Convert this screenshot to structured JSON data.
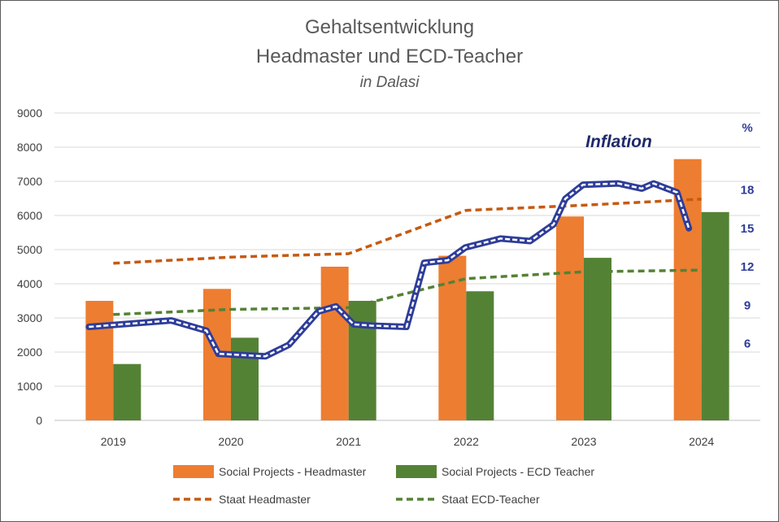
{
  "chart_data": {
    "type": "bar",
    "title": "Gehaltsentwicklung",
    "title_line2": "Headmaster und ECD-Teacher",
    "subtitle": "in Dalasi",
    "categories": [
      "2019",
      "2020",
      "2021",
      "2022",
      "2023",
      "2024"
    ],
    "ylim": [
      0,
      9000
    ],
    "yticks": [
      "0",
      "1000",
      "2000",
      "3000",
      "4000",
      "5000",
      "6000",
      "7000",
      "8000",
      "9000"
    ],
    "grid": true,
    "series": [
      {
        "name": "Social Projects - Headmaster",
        "kind": "bar",
        "color": "#ED7D31",
        "values": [
          3500,
          3850,
          4500,
          4820,
          5970,
          7650
        ]
      },
      {
        "name": "Social Projects - ECD Teacher",
        "kind": "bar",
        "color": "#548235",
        "values": [
          1650,
          2420,
          3500,
          3780,
          4760,
          6100
        ]
      },
      {
        "name": "Staat Headmaster",
        "kind": "dashed-line",
        "color": "#C55A11",
        "values": [
          4600,
          4780,
          4880,
          6150,
          6300,
          6480
        ]
      },
      {
        "name": "Staat ECD-Teacher",
        "kind": "dashed-line",
        "color": "#548235",
        "values": [
          3100,
          3250,
          3300,
          4150,
          4350,
          4400
        ]
      }
    ],
    "inflation": {
      "label": "Inflation",
      "unit": "%",
      "color": "#2E3D99",
      "ylim": [
        0,
        24
      ],
      "yticks": [
        "6",
        "9",
        "12",
        "15",
        "18"
      ],
      "x": [
        0.0,
        0.7,
        1.0,
        1.1,
        1.5,
        1.7,
        1.95,
        2.1,
        2.25,
        2.4,
        2.7,
        2.85,
        3.05,
        3.2,
        3.5,
        3.75,
        3.95,
        4.05,
        4.2,
        4.5,
        4.7,
        4.8,
        5.0,
        5.1
      ],
      "values": [
        7.3,
        7.8,
        7.0,
        5.2,
        5.0,
        5.9,
        8.5,
        8.9,
        7.5,
        7.4,
        7.3,
        12.3,
        12.5,
        13.5,
        14.2,
        14.0,
        15.3,
        17.3,
        18.4,
        18.5,
        18.1,
        18.5,
        17.8,
        15.0
      ]
    },
    "legend_position": "bottom"
  }
}
